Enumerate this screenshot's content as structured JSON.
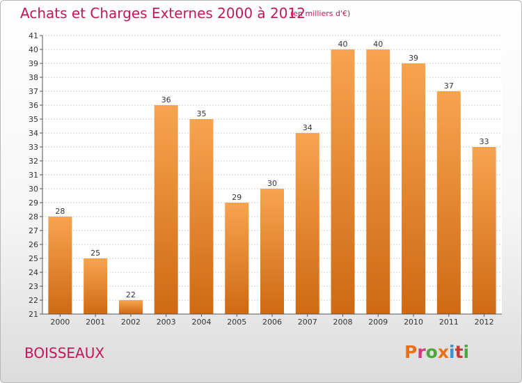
{
  "header": {
    "title": "Achats et Charges Externes 2000 à 2012",
    "subtitle": "(en milliers d'€)"
  },
  "footer": {
    "commune": "BOISSEAUX",
    "brand": "Proxiti",
    "brand_colors": [
      "#e8711a",
      "#d23a7e",
      "#4aa83b",
      "#e8711a",
      "#3b8fd4",
      "#c43a3a",
      "#4aa83b"
    ]
  },
  "colors": {
    "bar_top": "#f7a44f",
    "bar_bottom": "#cf6914",
    "title": "#c0185a"
  },
  "chart_data": {
    "type": "bar",
    "title": "Achats et Charges Externes 2000 à 2012",
    "subtitle": "(en milliers d'€)",
    "categories": [
      "2000",
      "2001",
      "2002",
      "2003",
      "2004",
      "2005",
      "2006",
      "2007",
      "2008",
      "2009",
      "2010",
      "2011",
      "2012"
    ],
    "values": [
      28,
      25,
      22,
      36,
      35,
      29,
      30,
      34,
      40,
      40,
      39,
      37,
      33
    ],
    "ylim": [
      21,
      41
    ],
    "yticks": [
      21,
      22,
      23,
      24,
      25,
      26,
      27,
      28,
      29,
      30,
      31,
      32,
      33,
      34,
      35,
      36,
      37,
      38,
      39,
      40,
      41
    ],
    "grid": true,
    "xlabel": "",
    "ylabel": ""
  }
}
